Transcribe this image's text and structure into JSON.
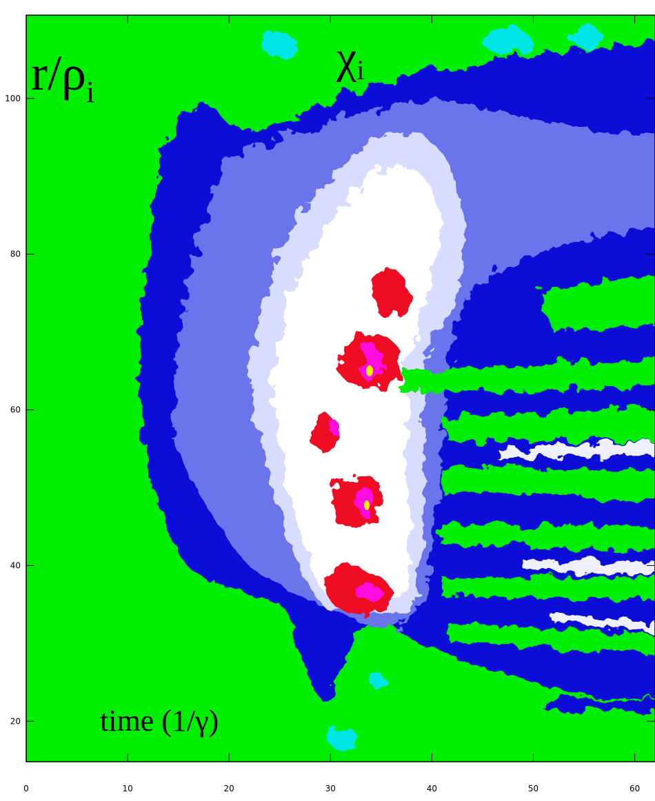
{
  "chart_data": {
    "type": "contour",
    "title": "χ",
    "title_subscript": "i",
    "x_label": "time (1/γ)",
    "y_label": "r/ρ",
    "y_label_subscript": "i",
    "xlim": [
      0,
      62
    ],
    "xticks": [
      0,
      10,
      20,
      30,
      40,
      50,
      60
    ],
    "ylim": [
      14.8,
      110.7
    ],
    "yticks": [
      20,
      40,
      60,
      80,
      100
    ],
    "background_color": "#00ee00"
  }
}
